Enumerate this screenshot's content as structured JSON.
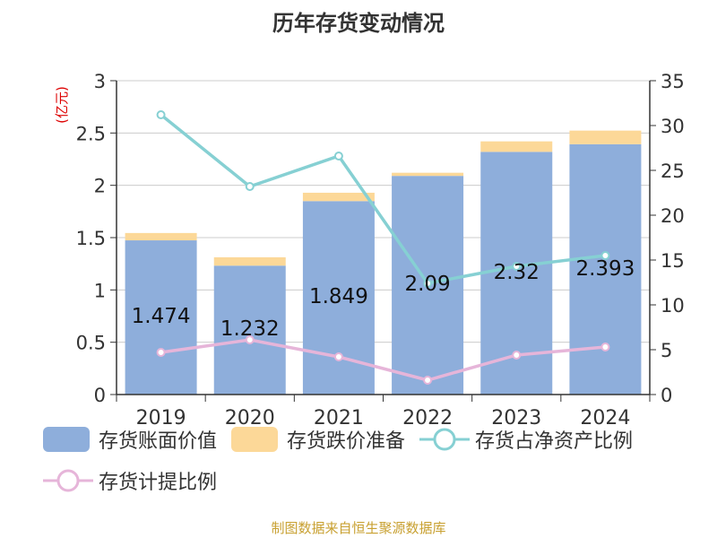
{
  "title": "历年存货变动情况",
  "source_note": "制图数据来自恒生聚源数据库",
  "legend": [
    {
      "label": "存货账面价值",
      "kind": "bar",
      "color": "#8eaedb"
    },
    {
      "label": "存货跌价准备",
      "kind": "bar",
      "color": "#fcd898"
    },
    {
      "label": "存货占净资产比例",
      "kind": "line",
      "color": "#86d0d3"
    },
    {
      "label": "存货计提比例",
      "kind": "line",
      "color": "#e6b5d9"
    }
  ],
  "chart_data": {
    "type": "bar",
    "categories": [
      "2019",
      "2020",
      "2021",
      "2022",
      "2023",
      "2024"
    ],
    "left_axis": {
      "label": "(亿元)",
      "range": [
        0,
        3
      ],
      "ticks": [
        "0",
        "0.5",
        "1",
        "1.5",
        "2",
        "2.5",
        "3"
      ],
      "values": [
        0,
        0.5,
        1,
        1.5,
        2,
        2.5,
        3
      ]
    },
    "right_axis": {
      "range": [
        0,
        35
      ],
      "ticks": [
        "0",
        "5",
        "10",
        "15",
        "20",
        "25",
        "30",
        "35"
      ],
      "values": [
        0,
        5,
        10,
        15,
        20,
        25,
        30,
        35
      ]
    },
    "series": [
      {
        "name": "存货账面价值",
        "type": "bar",
        "axis": "left",
        "color": "#8eaedb",
        "values": [
          1.474,
          1.232,
          1.849,
          2.09,
          2.32,
          2.393
        ],
        "labels": [
          "1.474",
          "1.232",
          "1.849",
          "2.09",
          "2.32",
          "2.393"
        ]
      },
      {
        "name": "存货跌价准备",
        "type": "bar",
        "axis": "left",
        "color": "#fcd898",
        "values": [
          0.07,
          0.08,
          0.08,
          0.03,
          0.1,
          0.13
        ]
      },
      {
        "name": "存货占净资产比例",
        "type": "line",
        "axis": "right",
        "color": "#86d0d3",
        "values": [
          31.2,
          23.2,
          26.6,
          12.4,
          14.3,
          15.5
        ]
      },
      {
        "name": "存货计提比例",
        "type": "line",
        "axis": "right",
        "color": "#e6b5d9",
        "values": [
          4.7,
          6.1,
          4.2,
          1.6,
          4.4,
          5.3
        ]
      }
    ],
    "grid": true
  }
}
